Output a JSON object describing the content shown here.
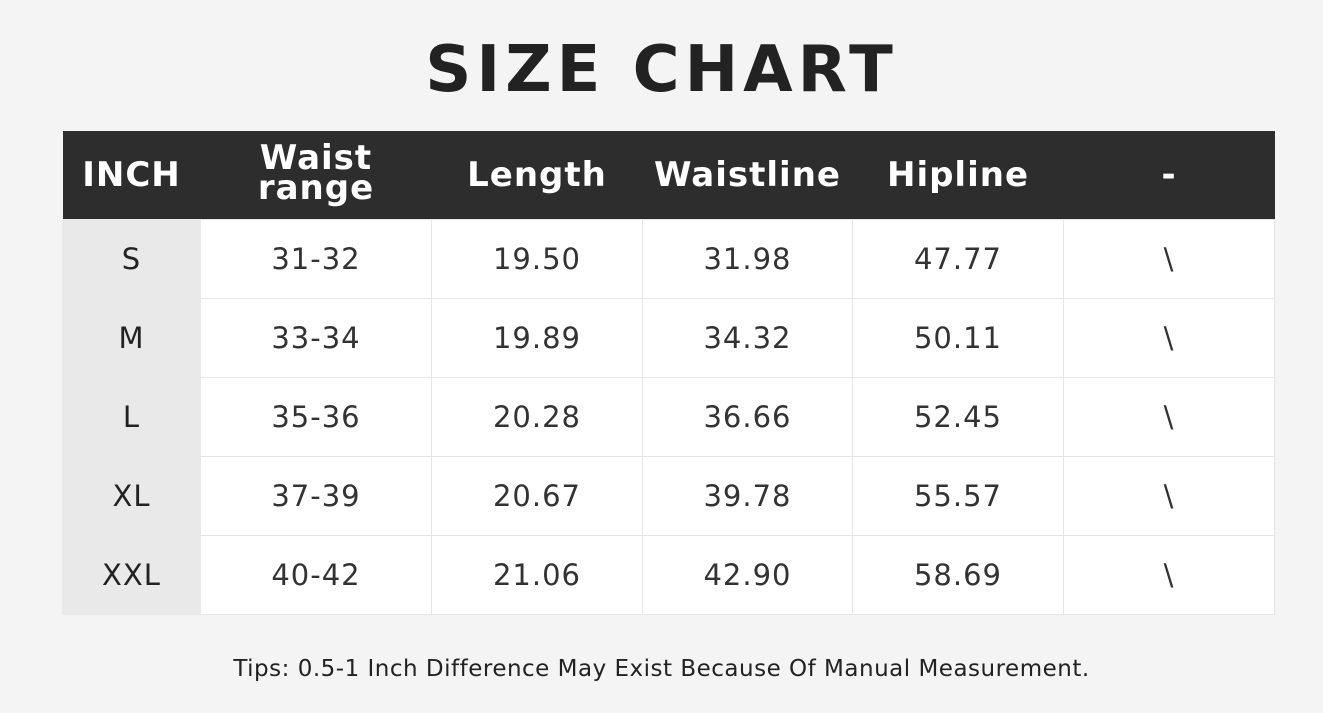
{
  "title": "SIZE CHART",
  "table": {
    "header": [
      "INCH",
      "Waist range",
      "Length",
      "Waistline",
      "Hipline",
      "-"
    ],
    "rows": [
      [
        "S",
        "31-32",
        "19.50",
        "31.98",
        "47.77",
        "\\"
      ],
      [
        "M",
        "33-34",
        "19.89",
        "34.32",
        "50.11",
        "\\"
      ],
      [
        "L",
        "35-36",
        "20.28",
        "36.66",
        "52.45",
        "\\"
      ],
      [
        "XL",
        "37-39",
        "20.67",
        "39.78",
        "55.57",
        "\\"
      ],
      [
        "XXL",
        "40-42",
        "21.06",
        "42.90",
        "58.69",
        "\\"
      ]
    ]
  },
  "tips": "Tips: 0.5-1 Inch Difference May Exist Because Of Manual Measurement."
}
